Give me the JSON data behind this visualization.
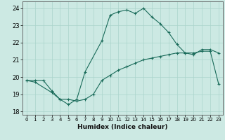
{
  "xlabel": "Humidex (Indice chaleur)",
  "xlim": [
    -0.5,
    23.5
  ],
  "ylim": [
    17.8,
    24.4
  ],
  "yticks": [
    18,
    19,
    20,
    21,
    22,
    23,
    24
  ],
  "xticks": [
    0,
    1,
    2,
    3,
    4,
    5,
    6,
    7,
    8,
    9,
    10,
    11,
    12,
    13,
    14,
    15,
    16,
    17,
    18,
    19,
    20,
    21,
    22,
    23
  ],
  "bg_color": "#cce9e3",
  "line_color": "#1a6b5a",
  "grid_color": "#aad4cc",
  "line1_x": [
    0,
    1,
    2,
    3,
    4,
    5,
    6,
    7,
    8,
    9,
    10,
    11,
    12,
    13,
    14,
    15,
    16,
    17,
    18,
    19,
    20,
    21,
    22,
    23
  ],
  "line1_y": [
    19.8,
    19.8,
    19.8,
    19.2,
    18.7,
    18.7,
    18.6,
    18.7,
    19.0,
    19.8,
    20.1,
    20.4,
    20.6,
    20.8,
    21.0,
    21.1,
    21.2,
    21.3,
    21.4,
    21.4,
    21.4,
    21.5,
    21.5,
    19.6
  ],
  "line2_x": [
    0,
    1,
    3,
    4,
    5,
    6,
    7,
    9,
    10,
    11,
    12,
    13,
    14,
    15,
    16,
    17,
    18,
    19,
    20,
    21,
    22,
    23
  ],
  "line2_y": [
    19.8,
    19.7,
    19.1,
    18.7,
    18.4,
    18.7,
    20.3,
    22.1,
    23.6,
    23.8,
    23.9,
    23.7,
    24.0,
    23.5,
    23.1,
    22.6,
    21.9,
    21.4,
    21.3,
    21.6,
    21.6,
    21.4
  ]
}
